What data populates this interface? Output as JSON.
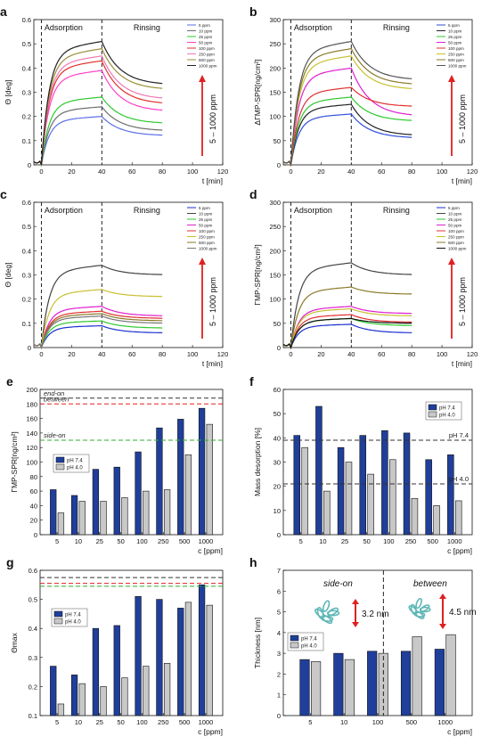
{
  "chart_data": [
    {
      "panel": "a",
      "type": "line",
      "ylabel": "Θ [deg]",
      "xlabel": "t [min]",
      "xlim": [
        -5,
        120
      ],
      "ylim": [
        0,
        0.6
      ],
      "xticks": [
        0,
        20,
        40,
        60,
        80,
        100,
        120
      ],
      "yticks": [
        0,
        0.1,
        0.2,
        0.3,
        0.4,
        0.5,
        0.6
      ],
      "yticks_text": [
        "0",
        "0.1",
        "0.2",
        "0.3",
        "0.4",
        "0.5",
        "0.6"
      ],
      "phases": [
        "Adsorption",
        "Rinsing"
      ],
      "phase_lines": [
        0,
        40
      ],
      "range_label": "5 – 1000 ppm",
      "legend": [
        "5 ppm",
        "10 ppm",
        "25 ppm",
        "50 ppm",
        "100 ppm",
        "250 ppm",
        "500 ppm",
        "1000 ppm"
      ],
      "series": [
        {
          "name": "5 ppm",
          "color": "#5b6ee8",
          "plateau": 0.2,
          "end": 0.12
        },
        {
          "name": "10 ppm",
          "color": "#6c6c6c",
          "plateau": 0.24,
          "end": 0.14
        },
        {
          "name": "25 ppm",
          "color": "#2ec92e",
          "plateau": 0.28,
          "end": 0.17
        },
        {
          "name": "50 ppm",
          "color": "#ff3fc8",
          "plateau": 0.39,
          "end": 0.22
        },
        {
          "name": "100 ppm",
          "color": "#e03030",
          "plateau": 0.43,
          "end": 0.25
        },
        {
          "name": "250 ppm",
          "color": "#f07ab0",
          "plateau": 0.45,
          "end": 0.27
        },
        {
          "name": "500 ppm",
          "color": "#9a8f3a",
          "plateau": 0.48,
          "end": 0.31
        },
        {
          "name": "1000 ppm",
          "color": "#222222",
          "plateau": 0.51,
          "end": 0.33
        }
      ]
    },
    {
      "panel": "b",
      "type": "line",
      "ylabel": "ΔΓMP-SPR[ng/cm²]",
      "xlabel": "t [min]",
      "xlim": [
        -5,
        120
      ],
      "ylim": [
        0,
        300
      ],
      "xticks": [
        0,
        20,
        40,
        60,
        80,
        100,
        120
      ],
      "yticks": [
        0,
        50,
        100,
        150,
        200,
        250,
        300
      ],
      "phases": [
        "Adsorption",
        "Rinsing"
      ],
      "phase_lines": [
        0,
        40
      ],
      "range_label": "5 – 1000 ppm",
      "legend": [
        "5 ppm",
        "10 ppm",
        "25 ppm",
        "50 ppm",
        "100 ppm",
        "250 ppm",
        "500 ppm",
        "1000 ppm"
      ],
      "series": [
        {
          "name": "5 ppm",
          "color": "#2f4fd8",
          "plateau": 105,
          "end": 55
        },
        {
          "name": "10 ppm",
          "color": "#222222",
          "plateau": 125,
          "end": 60
        },
        {
          "name": "25 ppm",
          "color": "#2ec92e",
          "plateau": 140,
          "end": 90
        },
        {
          "name": "50 ppm",
          "color": "#e01ecf",
          "plateau": 200,
          "end": 100
        },
        {
          "name": "100 ppm",
          "color": "#e03030",
          "plateau": 160,
          "end": 120
        },
        {
          "name": "250 ppm",
          "color": "#c8c030",
          "plateau": 225,
          "end": 155
        },
        {
          "name": "500 ppm",
          "color": "#8a7a2a",
          "plateau": 240,
          "end": 165
        },
        {
          "name": "1000 ppm",
          "color": "#555555",
          "plateau": 255,
          "end": 175
        }
      ]
    },
    {
      "panel": "c",
      "type": "line",
      "ylabel": "Θ [deg]",
      "xlabel": "t [min]",
      "xlim": [
        -5,
        120
      ],
      "ylim": [
        0,
        0.6
      ],
      "xticks": [
        0,
        20,
        40,
        60,
        80,
        100,
        120
      ],
      "yticks": [
        0,
        0.1,
        0.2,
        0.3,
        0.4,
        0.5,
        0.6
      ],
      "yticks_text": [
        "0",
        "0.1",
        "0.2",
        "0.3",
        "0.4",
        "0.5",
        "0.6"
      ],
      "phases": [
        "Adsorption",
        "Rinsing"
      ],
      "phase_lines": [
        0,
        40
      ],
      "range_label": "5 – 1000 ppm",
      "legend": [
        "5 ppm",
        "10 ppm",
        "25 ppm",
        "50 ppm",
        "100 ppm",
        "250 ppm",
        "500 ppm",
        "1000 ppm"
      ],
      "series": [
        {
          "name": "5 ppm",
          "color": "#1a2fd0",
          "plateau": 0.09,
          "end": 0.06
        },
        {
          "name": "10 ppm",
          "color": "#444444",
          "plateau": 0.34,
          "end": 0.3
        },
        {
          "name": "25 ppm",
          "color": "#2ec92e",
          "plateau": 0.11,
          "end": 0.08
        },
        {
          "name": "50 ppm",
          "color": "#e01ecf",
          "plateau": 0.17,
          "end": 0.13
        },
        {
          "name": "100 ppm",
          "color": "#e03030",
          "plateau": 0.15,
          "end": 0.12
        },
        {
          "name": "250 ppm",
          "color": "#c8c030",
          "plateau": 0.24,
          "end": 0.21
        },
        {
          "name": "500 ppm",
          "color": "#8a7a2a",
          "plateau": 0.14,
          "end": 0.11
        },
        {
          "name": "1000 ppm",
          "color": "#777777",
          "plateau": 0.13,
          "end": 0.1
        }
      ]
    },
    {
      "panel": "d",
      "type": "line",
      "ylabel": "ΓMP-SPR[ng/cm²]",
      "xlabel": "t [min]",
      "xlim": [
        -5,
        120
      ],
      "ylim": [
        0,
        300
      ],
      "xticks": [
        0,
        20,
        40,
        60,
        80,
        100,
        120
      ],
      "yticks": [
        0,
        50,
        100,
        150,
        200,
        250,
        300
      ],
      "phases": [
        "Adsorption",
        "Rinsing"
      ],
      "phase_lines": [
        0,
        40
      ],
      "range_label": "5 – 1000 ppm",
      "legend": [
        "5 ppm",
        "10 ppm",
        "25 ppm",
        "50 ppm",
        "100 ppm",
        "250 ppm",
        "500 ppm",
        "1000 ppm"
      ],
      "series": [
        {
          "name": "5 ppm",
          "color": "#1a2fd0",
          "plateau": 48,
          "end": 30
        },
        {
          "name": "10 ppm",
          "color": "#444444",
          "plateau": 175,
          "end": 150
        },
        {
          "name": "25 ppm",
          "color": "#2ec92e",
          "plateau": 60,
          "end": 45
        },
        {
          "name": "50 ppm",
          "color": "#e01ecf",
          "plateau": 85,
          "end": 70
        },
        {
          "name": "100 ppm",
          "color": "#e03030",
          "plateau": 68,
          "end": 52
        },
        {
          "name": "250 ppm",
          "color": "#c8c030",
          "plateau": 80,
          "end": 65
        },
        {
          "name": "500 ppm",
          "color": "#8a7a2a",
          "plateau": 125,
          "end": 110
        },
        {
          "name": "1000 ppm",
          "color": "#111111",
          "plateau": 60,
          "end": 50
        }
      ]
    },
    {
      "panel": "e",
      "type": "bar",
      "ylabel": "ΓMP-SPR[ng/cm²]",
      "xlabel": "c [ppm]",
      "categories": [
        "5",
        "10",
        "25",
        "50",
        "100",
        "250",
        "500",
        "1000"
      ],
      "ylim": [
        0,
        200
      ],
      "yticks": [
        0,
        20,
        40,
        60,
        80,
        100,
        120,
        140,
        160,
        180,
        200
      ],
      "legend": [
        "pH 7.4",
        "pH 4.0"
      ],
      "series": [
        {
          "name": "pH 7.4",
          "color": "#1f3f9a",
          "values": [
            62,
            54,
            90,
            93,
            114,
            147,
            159,
            174
          ]
        },
        {
          "name": "pH 4.0",
          "color": "#c8c8c8",
          "values": [
            30,
            46,
            46,
            51,
            60,
            62,
            110,
            152
          ]
        }
      ],
      "reference_lines": [
        {
          "label": "end-on",
          "value": 188,
          "color": "#333333"
        },
        {
          "label": "between",
          "value": 180,
          "color": "#e02020"
        },
        {
          "label": "side-on",
          "value": 130,
          "color": "#2fae2f"
        }
      ]
    },
    {
      "panel": "f",
      "type": "bar",
      "ylabel": "Mass desorption [%]",
      "xlabel": "c [ppm]",
      "categories": [
        "5",
        "10",
        "25",
        "50",
        "100",
        "250",
        "500",
        "1000"
      ],
      "ylim": [
        0,
        60
      ],
      "yticks": [
        0,
        10,
        20,
        30,
        40,
        50,
        60
      ],
      "legend": [
        "pH 7.4",
        "pH 4.0"
      ],
      "series": [
        {
          "name": "pH 7.4",
          "color": "#1f3f9a",
          "values": [
            41,
            53,
            36,
            41,
            43,
            42,
            31,
            33
          ]
        },
        {
          "name": "pH 4.0",
          "color": "#c8c8c8",
          "values": [
            36,
            18,
            30,
            25,
            31,
            15,
            12,
            14
          ]
        }
      ],
      "reference_lines": [
        {
          "label": "pH 7.4",
          "value": 39,
          "color": "#333333"
        },
        {
          "label": "pH 4.0",
          "value": 21,
          "color": "#333333"
        }
      ]
    },
    {
      "panel": "g",
      "type": "bar",
      "ylabel": "Θmax",
      "xlabel": "c [ppm]",
      "categories": [
        "5",
        "10",
        "25",
        "50",
        "100",
        "250",
        "500",
        "1000"
      ],
      "ylim": [
        0.1,
        0.6
      ],
      "yticks": [
        0.1,
        0.2,
        0.3,
        0.4,
        0.5,
        0.6
      ],
      "yticks_text": [
        "0.1",
        "0.2",
        "0.3",
        "0.4",
        "0.5",
        "0.6"
      ],
      "legend": [
        "pH 7.4",
        "pH 4.0"
      ],
      "series": [
        {
          "name": "pH 7.4",
          "color": "#1f3f9a",
          "values": [
            0.27,
            0.24,
            0.4,
            0.41,
            0.51,
            0.5,
            0.47,
            0.55
          ]
        },
        {
          "name": "pH 4.0",
          "color": "#c8c8c8",
          "values": [
            0.14,
            0.21,
            0.2,
            0.23,
            0.27,
            0.28,
            0.49,
            0.48
          ]
        }
      ],
      "reference_lines": [
        {
          "value": 0.575,
          "color": "#333333"
        },
        {
          "value": 0.555,
          "color": "#e02020"
        },
        {
          "value": 0.545,
          "color": "#2fae2f"
        }
      ]
    },
    {
      "panel": "h",
      "type": "bar",
      "ylabel": "Thickness [nm]",
      "xlabel": "c [ppm]",
      "categories": [
        "5",
        "10",
        "100",
        "500",
        "1000"
      ],
      "ylim": [
        0,
        7
      ],
      "yticks": [
        0,
        1,
        2,
        3,
        4,
        5,
        6,
        7
      ],
      "legend": [
        "pH 7.4",
        "pH 4.0"
      ],
      "series": [
        {
          "name": "pH 7.4",
          "color": "#1f3f9a",
          "values": [
            2.7,
            3.0,
            3.1,
            3.1,
            3.2
          ]
        },
        {
          "name": "pH 4.0",
          "color": "#c8c8c8",
          "values": [
            2.6,
            2.7,
            3.0,
            3.8,
            3.9
          ]
        }
      ],
      "regions": [
        "side-on",
        "between"
      ],
      "annotations": [
        "3.2 nm",
        "4.5 nm"
      ]
    }
  ]
}
